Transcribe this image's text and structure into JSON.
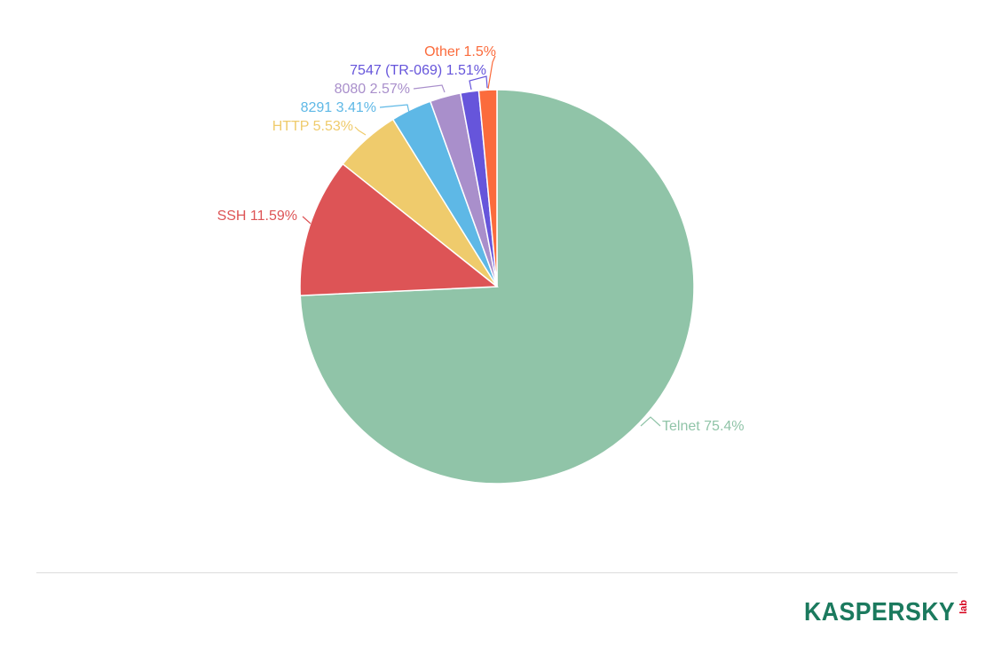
{
  "chart_data": {
    "type": "pie",
    "slices": [
      {
        "label": "Telnet",
        "value": 75.4,
        "display": "Telnet 75.4%",
        "color": "#90c4a8"
      },
      {
        "label": "SSH",
        "value": 11.59,
        "display": "SSH 11.59%",
        "color": "#dd5456"
      },
      {
        "label": "HTTP",
        "value": 5.53,
        "display": "HTTP 5.53%",
        "color": "#efcb6c"
      },
      {
        "label": "8291",
        "value": 3.41,
        "display": "8291 3.41%",
        "color": "#5eb8e6"
      },
      {
        "label": "8080",
        "value": 2.57,
        "display": "8080 2.57%",
        "color": "#a98fcb"
      },
      {
        "label": "7547 (TR-069)",
        "value": 1.51,
        "display": "7547 (TR-069) 1.51%",
        "color": "#6655db"
      },
      {
        "label": "Other",
        "value": 1.5,
        "display": "Other 1.5%",
        "color": "#fb6b3c"
      }
    ],
    "start": "top",
    "direction": "clockwise"
  },
  "branding": {
    "logo_text": "KASPERSKY",
    "logo_suffix": "lab",
    "logo_color": "#1b7a5e",
    "logo_accent": "#d6001c"
  }
}
